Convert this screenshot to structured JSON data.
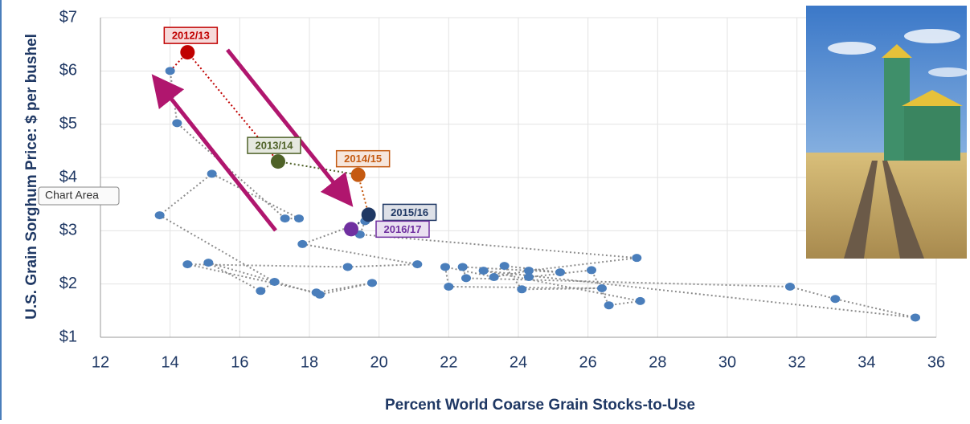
{
  "chart_data": {
    "type": "scatter",
    "y_label": "U.S. Grain Sorghum Price: $ per bushel",
    "x_label": "Percent World Coarse Grain Stocks-to-Use",
    "tooltip": "Chart Area",
    "xlim": [
      12,
      36
    ],
    "xticks": [
      12,
      14,
      16,
      18,
      20,
      22,
      24,
      26,
      28,
      30,
      32,
      34,
      36
    ],
    "ylim": [
      1,
      7
    ],
    "yticks": [
      {
        "value": 1,
        "label": "$1"
      },
      {
        "value": 2,
        "label": "$2"
      },
      {
        "value": 3,
        "label": "$3"
      },
      {
        "value": 4,
        "label": "$4"
      },
      {
        "value": 5,
        "label": "$5"
      },
      {
        "value": 6,
        "label": "$6"
      },
      {
        "value": 7,
        "label": "$7"
      }
    ],
    "grid": true,
    "color": "#4a7ebb",
    "x": [
      24.3,
      26.1,
      26.6,
      27.5,
      23.0,
      35.4,
      33.1,
      31.8,
      22.5,
      22.4,
      25.2,
      23.6,
      24.1,
      26.4,
      22.0,
      21.9,
      23.3,
      24.3,
      27.4,
      19.45,
      19.6,
      17.8,
      21.1,
      19.1,
      14.5,
      18.2,
      19.8,
      18.3,
      15.1,
      16.6,
      17.0,
      13.7,
      15.2,
      17.7,
      17.3,
      14.2,
      14.0
    ],
    "values": [
      2.13,
      2.26,
      1.6,
      1.68,
      2.25,
      1.37,
      1.72,
      1.95,
      2.11,
      2.32,
      2.22,
      2.34,
      1.9,
      1.92,
      1.95,
      2.32,
      2.13,
      2.25,
      2.49,
      2.93,
      3.18,
      2.75,
      2.37,
      2.32,
      2.37,
      1.84,
      2.02,
      1.8,
      2.4,
      1.87,
      2.04,
      3.29,
      4.07,
      3.23,
      3.23,
      5.02,
      6.0
    ],
    "highlight": {
      "labels": [
        "2012/13",
        "2013/14",
        "2014/15",
        "2015/16",
        "2016/17"
      ],
      "x": [
        14.5,
        17.1,
        19.4,
        19.7,
        19.2
      ],
      "values": [
        6.35,
        4.3,
        4.05,
        3.3,
        3.03
      ],
      "colors": [
        "#c00000",
        "#4f6228",
        "#c55a11",
        "#1f3864",
        "#7030a0"
      ]
    }
  }
}
